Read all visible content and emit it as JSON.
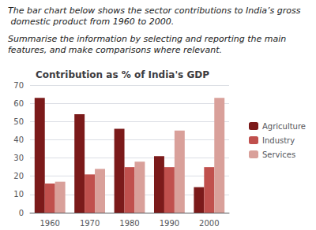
{
  "chart_data": {
    "type": "bar",
    "title": "Contribution as % of India's GDP",
    "annotations": [
      "The bar chart below shows the sector contributions to India’s gross domestic product from 1960 to 2000.",
      "Summarise the information by selecting and reporting the main features, and make comparisons where relevant."
    ],
    "categories": [
      "1960",
      "1970",
      "1980",
      "1990",
      "2000"
    ],
    "series": [
      {
        "name": "Agriculture",
        "color": "#7B1A1A",
        "values": [
          63,
          54,
          46,
          31,
          14
        ]
      },
      {
        "name": "Industry",
        "color": "#C0504D",
        "values": [
          16,
          21,
          25,
          25,
          25
        ]
      },
      {
        "name": "Services",
        "color": "#D9A09A",
        "values": [
          17,
          24,
          28,
          45,
          63
        ]
      }
    ],
    "ylim": [
      0,
      70
    ],
    "yticks": [
      0,
      10,
      20,
      30,
      40,
      50,
      60,
      70
    ],
    "grid": true,
    "legend": "right"
  }
}
